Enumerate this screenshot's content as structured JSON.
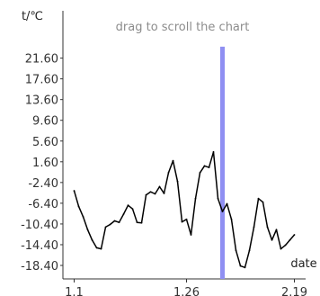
{
  "hint": "drag to scroll the chart",
  "colors": {
    "line": "#000000",
    "axis": "#333333",
    "cursor": "#8f8ff2",
    "hint": "#8c8c8c",
    "background": "#ffffff"
  },
  "chart_data": {
    "type": "line",
    "title": "",
    "xlabel": "date",
    "ylabel": "t/℃",
    "x_ticks": [
      "1.1",
      "1.26",
      "2.19"
    ],
    "x_tick_positions": [
      1,
      26,
      50
    ],
    "y_ticks": [
      "21.60",
      "17.60",
      "13.60",
      "9.60",
      "5.60",
      "1.60",
      "-2.40",
      "-6.40",
      "-10.40",
      "-14.40",
      "-18.40"
    ],
    "y_tick_values": [
      21.6,
      17.6,
      13.6,
      9.6,
      5.6,
      1.6,
      -2.4,
      -6.4,
      -10.4,
      -14.4,
      -18.4
    ],
    "xlim": [
      -1.5,
      52.5
    ],
    "ylim": [
      -21,
      25
    ],
    "grid": false,
    "legend": "none",
    "cursor_at_day": 34,
    "series": [
      {
        "name": "",
        "x": [
          1,
          2,
          3,
          4,
          5,
          6,
          7,
          8,
          9,
          10,
          11,
          12,
          13,
          14,
          15,
          16,
          17,
          18,
          19,
          20,
          21,
          22,
          23,
          24,
          25,
          26,
          27,
          28,
          29,
          30,
          31,
          32,
          33,
          34,
          35,
          36,
          37,
          38,
          39,
          40,
          41,
          42,
          43,
          44,
          45,
          46,
          47,
          48,
          49,
          50
        ],
        "values": [
          -4,
          -7,
          -9,
          -11.5,
          -13.5,
          -15,
          -15.2,
          -11,
          -10.5,
          -9.8,
          -10.1,
          -8.5,
          -6.8,
          -7.5,
          -10.1,
          -10.2,
          -4.8,
          -4.2,
          -4.6,
          -3.2,
          -4.5,
          -0.5,
          1.8,
          -2.2,
          -10,
          -9.5,
          -12.5,
          -5.5,
          -0.5,
          0.8,
          0.5,
          3.5,
          -5.5,
          -8,
          -6.5,
          -9.5,
          -15.5,
          -18.5,
          -18.8,
          -15.5,
          -11,
          -5.5,
          -6.2,
          -11,
          -13.5,
          -11.5,
          -15.2,
          -14.5,
          -13.5,
          -12.5
        ]
      }
    ]
  }
}
